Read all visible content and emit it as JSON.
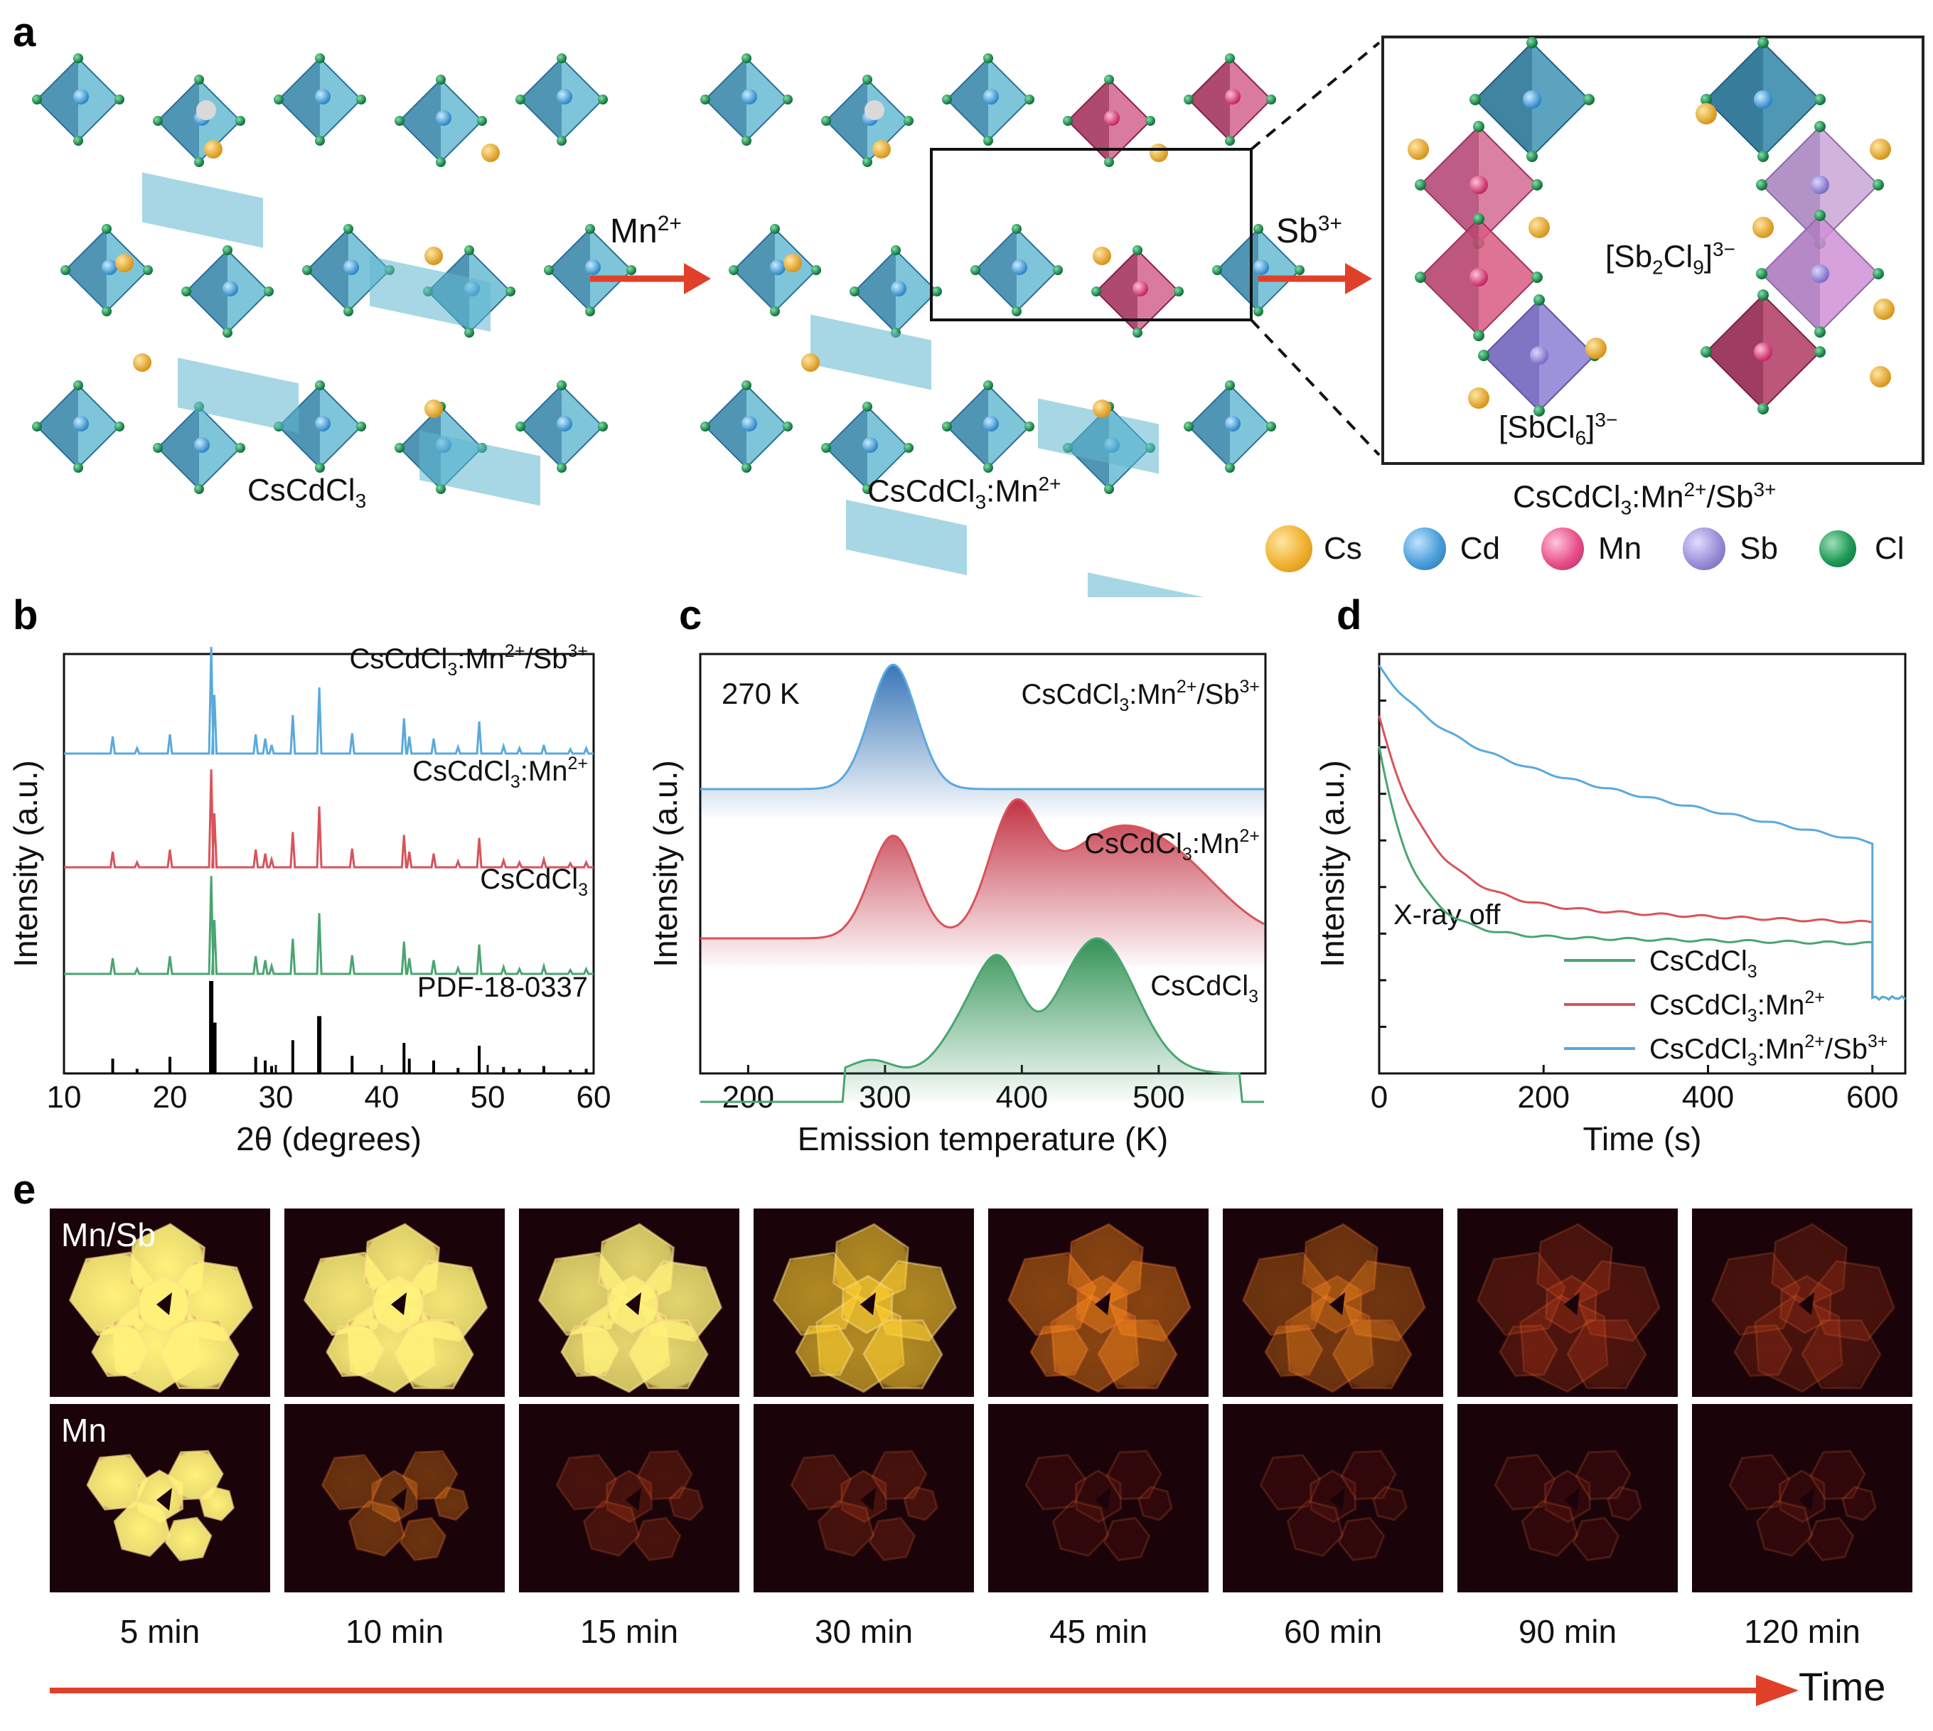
{
  "panel_labels": {
    "a": "a",
    "b": "b",
    "c": "c",
    "d": "d",
    "e": "e"
  },
  "panel_a": {
    "structure_1": {
      "name": "CsCdCl",
      "sub": "3"
    },
    "structure_2": {
      "name": "CsCdCl",
      "sub": "3",
      "suffix": ":Mn",
      "sup": "2+"
    },
    "structure_3": {
      "name": "CsCdCl",
      "sub": "3",
      "suffix": ":Mn",
      "sup": "2+",
      "suffix2": "/Sb",
      "sup2": "3+"
    },
    "arrow_1": {
      "ion": "Mn",
      "sup": "2+"
    },
    "arrow_2": {
      "ion": "Sb",
      "sup": "3+"
    },
    "inset_labels": {
      "dimer": {
        "a": "[Sb",
        "sub1": "2",
        "b": "Cl",
        "sub2": "9",
        "c": "]",
        "sup": "3−"
      },
      "mono": {
        "a": "[SbCl",
        "sub1": "6",
        "c": "]",
        "sup": "3−"
      }
    },
    "legend": [
      {
        "name": "Cs",
        "color": "#f0b030"
      },
      {
        "name": "Cd",
        "color": "#4a9fd8"
      },
      {
        "name": "Mn",
        "color": "#e8508a"
      },
      {
        "name": "Sb",
        "color": "#9a8ed8"
      },
      {
        "name": "Cl",
        "color": "#1f9a56"
      }
    ],
    "colors": {
      "cd_poly": "#5fb6cf",
      "cd_poly_dark": "#2a6f95",
      "mn_poly": "#d05a86",
      "arrow": "#e0402a"
    }
  },
  "chart_data": [
    {
      "panel": "b",
      "type": "line",
      "xlabel": "2θ (degrees)",
      "ylabel": "Intensity (a.u.)",
      "xlim": [
        10,
        60
      ],
      "xticks": [
        10,
        20,
        30,
        40,
        50,
        60
      ],
      "series": [
        {
          "name": "CsCdCl3:Mn2+/Sb3+",
          "label": {
            "a": "CsCdCl",
            "sub": "3",
            "b": ":Mn",
            "sup": "2+",
            "c": "/Sb",
            "sup2": "3+"
          },
          "color": "#5aa9dc"
        },
        {
          "name": "CsCdCl3:Mn2+",
          "label": {
            "a": "CsCdCl",
            "sub": "3",
            "b": ":Mn",
            "sup": "2+"
          },
          "color": "#d9535a"
        },
        {
          "name": "CsCdCl3",
          "label": {
            "a": "CsCdCl",
            "sub": "3"
          },
          "color": "#4aa571"
        },
        {
          "name": "PDF-18-0337",
          "label": {
            "a": "PDF-18-0337"
          },
          "color": "#000000"
        }
      ],
      "peaks": [
        {
          "x": 14.6,
          "i": 0.16
        },
        {
          "x": 16.9,
          "i": 0.05
        },
        {
          "x": 20.0,
          "i": 0.18
        },
        {
          "x": 23.9,
          "i": 1.0
        },
        {
          "x": 24.2,
          "i": 0.55
        },
        {
          "x": 28.1,
          "i": 0.18
        },
        {
          "x": 29.0,
          "i": 0.14
        },
        {
          "x": 29.6,
          "i": 0.08
        },
        {
          "x": 31.6,
          "i": 0.36
        },
        {
          "x": 34.1,
          "i": 0.62
        },
        {
          "x": 37.2,
          "i": 0.19
        },
        {
          "x": 42.1,
          "i": 0.33
        },
        {
          "x": 42.6,
          "i": 0.16
        },
        {
          "x": 44.9,
          "i": 0.14
        },
        {
          "x": 47.2,
          "i": 0.06
        },
        {
          "x": 49.2,
          "i": 0.3
        },
        {
          "x": 51.5,
          "i": 0.07
        },
        {
          "x": 53.0,
          "i": 0.05
        },
        {
          "x": 55.3,
          "i": 0.08
        },
        {
          "x": 57.8,
          "i": 0.04
        },
        {
          "x": 59.3,
          "i": 0.05
        }
      ]
    },
    {
      "panel": "c",
      "type": "line",
      "xlabel": "Emission temperature (K)",
      "ylabel": "Intensity (a.u.)",
      "annotation": "270 K",
      "xlim": [
        165,
        578
      ],
      "xticks": [
        200,
        300,
        400,
        500
      ],
      "series": [
        {
          "name": "CsCdCl3:Mn2+/Sb3+",
          "label": {
            "a": "CsCdCl",
            "sub": "3",
            "b": ":Mn",
            "sup": "2+",
            "c": "/Sb",
            "sup2": "3+"
          },
          "color": "#5aa9dc",
          "fill": "#2f6fb5",
          "peaks": [
            {
              "center": 306,
              "height": 1.0,
              "width": 17
            }
          ]
        },
        {
          "name": "CsCdCl3:Mn2+",
          "label": {
            "a": "CsCdCl",
            "sub": "3",
            "b": ":Mn",
            "sup": "2+"
          },
          "color": "#d9535a",
          "fill": "#c0283a",
          "peaks": [
            {
              "center": 306,
              "height": 0.85,
              "width": 17
            },
            {
              "center": 394,
              "height": 0.95,
              "width": 18
            },
            {
              "center": 462,
              "height": 0.8,
              "width": 40
            },
            {
              "center": 520,
              "height": 0.4,
              "width": 35
            }
          ]
        },
        {
          "name": "CsCdCl3",
          "label": {
            "a": "CsCdCl",
            "sub": "3"
          },
          "color": "#4aa571",
          "fill": "#2a8f50",
          "peaks": [
            {
              "center": 290,
              "height": 0.1,
              "width": 15
            },
            {
              "center": 365,
              "height": 0.45,
              "width": 20
            },
            {
              "center": 386,
              "height": 0.55,
              "width": 15
            },
            {
              "center": 455,
              "height": 1.0,
              "width": 28
            }
          ]
        }
      ]
    },
    {
      "panel": "d",
      "type": "line",
      "xlabel": "Time (s)",
      "ylabel": "Intensity (a.u.)",
      "annotation": "X-ray off",
      "xlim": [
        0,
        640
      ],
      "xticks": [
        0,
        200,
        400,
        600
      ],
      "series": [
        {
          "name": "CsCdCl3",
          "label": {
            "a": "CsCdCl",
            "sub": "3"
          },
          "color": "#4aa571",
          "start": 0.78,
          "tail": 0.33,
          "end": 0.31,
          "tau": 40
        },
        {
          "name": "CsCdCl3:Mn2+",
          "label": {
            "a": "CsCdCl",
            "sub": "3",
            "b": ":Mn",
            "sup": "2+"
          },
          "color": "#d9535a",
          "start": 0.85,
          "tail": 0.4,
          "end": 0.36,
          "tau": 60
        },
        {
          "name": "CsCdCl3:Mn2+/Sb3+",
          "label": {
            "a": "CsCdCl",
            "sub": "3",
            "b": ":Mn",
            "sup": "2+",
            "c": "/Sb",
            "sup2": "3+"
          },
          "color": "#5aa9dc",
          "start": 0.97,
          "tail": 0.78,
          "end": 0.55,
          "tau": 80
        }
      ],
      "after_off": 0.19
    }
  ],
  "panel_e": {
    "row_labels": [
      "Mn/Sb",
      "Mn"
    ],
    "times": [
      "5 min",
      "10 min",
      "15 min",
      "30 min",
      "45 min",
      "60 min",
      "90 min",
      "120 min"
    ],
    "time_axis_label": "Time",
    "brightness_mnsb": [
      1.0,
      0.95,
      0.88,
      0.66,
      0.48,
      0.38,
      0.28,
      0.22
    ],
    "brightness_mn": [
      1.0,
      0.36,
      0.26,
      0.2,
      0.14,
      0.11,
      0.08,
      0.06
    ],
    "glow_colors": [
      "#fff27a",
      "#ffcf30",
      "#ff8a1a",
      "#d0401a",
      "#7a1a12"
    ]
  }
}
